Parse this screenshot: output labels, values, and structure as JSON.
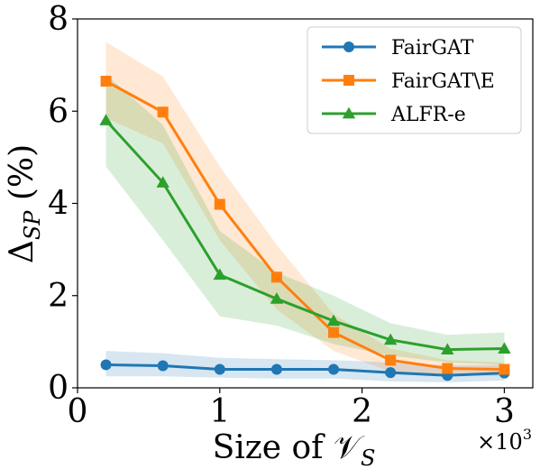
{
  "chart_data": {
    "type": "line",
    "xlabel": "Size of 𝒱",
    "xlabel_sub": "S",
    "ylabel": "Δ",
    "ylabel_sub": "SP",
    "ylabel_suffix": " (%)",
    "x_multiplier_base": "×10",
    "x_multiplier_exp": "3",
    "xlim": [
      0,
      3.2
    ],
    "ylim": [
      0,
      8
    ],
    "xticks": [
      0,
      1,
      2,
      3
    ],
    "yticks": [
      0,
      2,
      4,
      6,
      8
    ],
    "legend_position": "top-right",
    "x": [
      0.2,
      0.6,
      1.0,
      1.4,
      1.8,
      2.2,
      2.6,
      3.0
    ],
    "series": [
      {
        "name": "FairGAT",
        "color": "#1f77b4",
        "marker": "circle",
        "values": [
          0.5,
          0.48,
          0.4,
          0.4,
          0.4,
          0.33,
          0.27,
          0.32
        ],
        "band_low": [
          0.25,
          0.25,
          0.22,
          0.2,
          0.2,
          0.14,
          0.12,
          0.16
        ],
        "band_high": [
          0.8,
          0.75,
          0.65,
          0.62,
          0.6,
          0.55,
          0.48,
          0.5
        ]
      },
      {
        "name": "FairGAT\\E",
        "color": "#ff7f0e",
        "marker": "square",
        "values": [
          6.65,
          5.98,
          3.98,
          2.4,
          1.2,
          0.6,
          0.42,
          0.4
        ],
        "band_low": [
          5.85,
          5.3,
          3.2,
          1.7,
          0.8,
          0.35,
          0.28,
          0.25
        ],
        "band_high": [
          7.5,
          6.75,
          4.8,
          3.1,
          1.6,
          0.85,
          0.6,
          0.55
        ]
      },
      {
        "name": "ALFR-e",
        "color": "#2ca02c",
        "marker": "triangle",
        "values": [
          5.8,
          4.45,
          2.45,
          1.93,
          1.45,
          1.04,
          0.83,
          0.85
        ],
        "band_low": [
          4.8,
          3.2,
          1.55,
          1.35,
          0.95,
          0.7,
          0.55,
          0.5
        ],
        "band_high": [
          6.8,
          5.7,
          3.4,
          2.5,
          2.0,
          1.4,
          1.15,
          1.2
        ]
      }
    ]
  }
}
